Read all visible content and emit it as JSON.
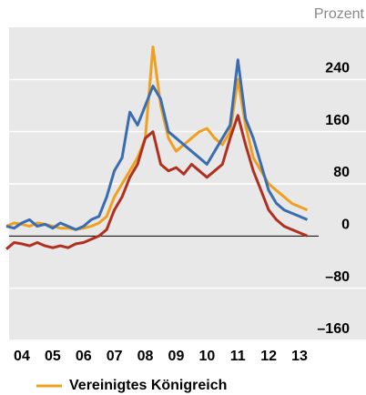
{
  "chart_data": {
    "type": "line",
    "y_label": "Prozent",
    "x": [
      2004,
      2004.25,
      2004.5,
      2004.75,
      2005,
      2005.25,
      2005.5,
      2005.75,
      2006,
      2006.25,
      2006.5,
      2006.75,
      2007,
      2007.25,
      2007.5,
      2007.75,
      2008,
      2008.25,
      2008.5,
      2008.75,
      2009,
      2009.25,
      2009.5,
      2009.75,
      2010,
      2010.25,
      2010.5,
      2010.75,
      2011,
      2011.25,
      2011.5,
      2011.75,
      2012,
      2012.25,
      2012.5,
      2012.75,
      2013,
      2013.25,
      2013.5,
      2013.75
    ],
    "series": [
      {
        "name": "Vereinigtes Königreich",
        "color": "#f0a020",
        "values": [
          15,
          20,
          18,
          15,
          20,
          18,
          15,
          12,
          12,
          10,
          12,
          15,
          20,
          30,
          60,
          80,
          100,
          120,
          150,
          290,
          200,
          150,
          130,
          140,
          150,
          160,
          165,
          150,
          140,
          160,
          240,
          170,
          120,
          100,
          80,
          70,
          60,
          50,
          45,
          40
        ]
      },
      {
        "color": "#3a6cb0",
        "values": [
          15,
          12,
          20,
          25,
          15,
          18,
          12,
          20,
          15,
          10,
          15,
          25,
          30,
          60,
          100,
          120,
          190,
          170,
          200,
          230,
          210,
          160,
          150,
          140,
          130,
          120,
          110,
          130,
          150,
          170,
          270,
          180,
          150,
          110,
          70,
          50,
          40,
          35,
          30,
          25
        ]
      },
      {
        "color": "#b03020",
        "values": [
          -20,
          -10,
          -12,
          -15,
          -10,
          -15,
          -18,
          -15,
          -18,
          -12,
          -10,
          -5,
          0,
          10,
          40,
          60,
          90,
          110,
          150,
          160,
          110,
          100,
          105,
          95,
          110,
          100,
          90,
          100,
          110,
          150,
          185,
          140,
          100,
          70,
          40,
          25,
          15,
          10,
          5,
          0
        ]
      }
    ],
    "xlim": [
      2004,
      2014
    ],
    "xticks": [
      {
        "value": 2004.5,
        "label": "04"
      },
      {
        "value": 2005.5,
        "label": "05"
      },
      {
        "value": 2006.5,
        "label": "06"
      },
      {
        "value": 2007.5,
        "label": "07"
      },
      {
        "value": 2008.5,
        "label": "08"
      },
      {
        "value": 2009.5,
        "label": "09"
      },
      {
        "value": 2010.5,
        "label": "10"
      },
      {
        "value": 2011.5,
        "label": "11"
      },
      {
        "value": 2012.5,
        "label": "12"
      },
      {
        "value": 2013.5,
        "label": "13"
      }
    ],
    "ylim": [
      -160,
      320
    ],
    "yticks": [
      {
        "value": -160,
        "label": "–160"
      },
      {
        "value": -80,
        "label": "–80"
      },
      0,
      80,
      160,
      240
    ],
    "grid": true
  }
}
